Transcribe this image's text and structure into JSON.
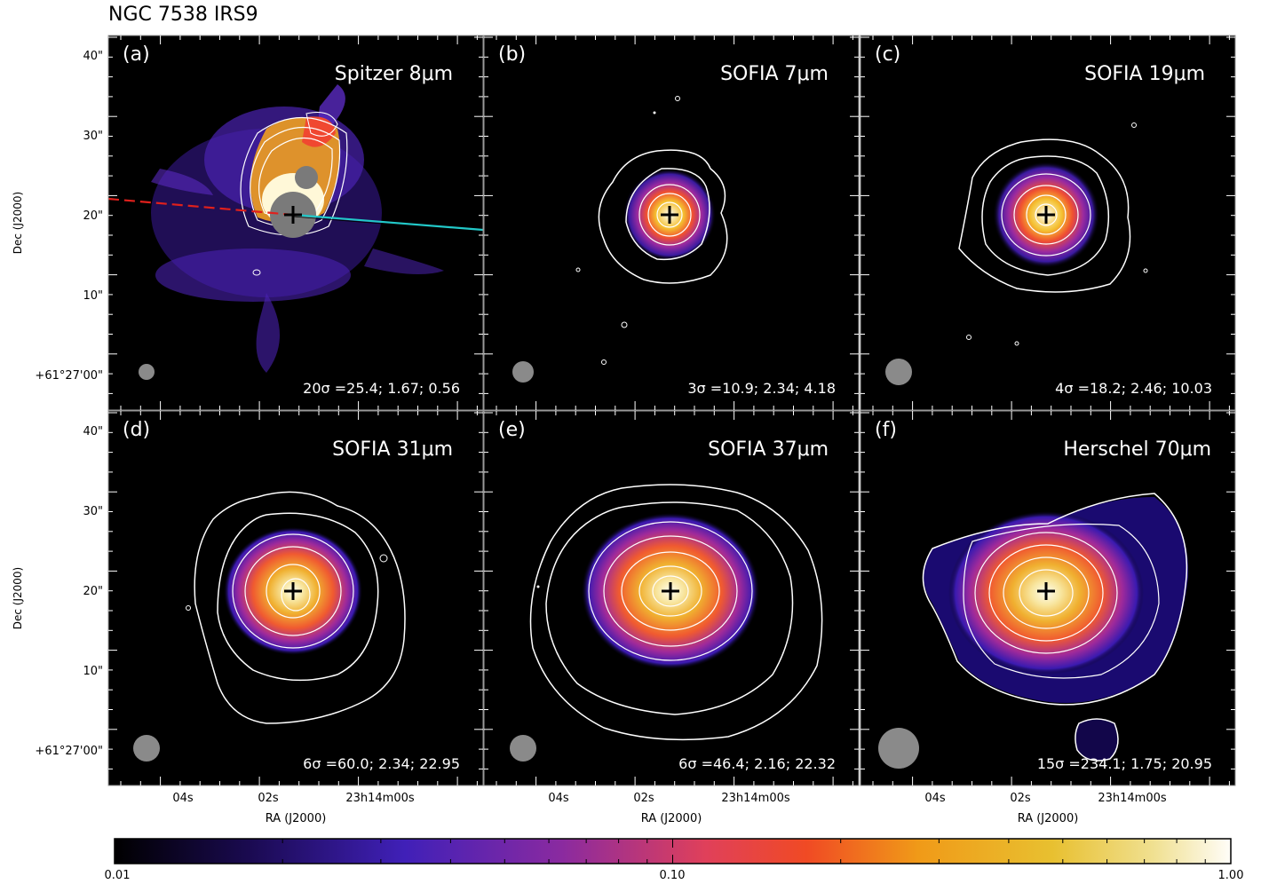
{
  "figure": {
    "title": "NGC 7538 IRS9",
    "colorbar": {
      "min_label": "0.01",
      "mid_label": "0.10",
      "max_label": "1.00",
      "scale": "log"
    }
  },
  "axes": {
    "dec_ticks": [
      "40\"",
      "30\"",
      "20\"",
      "10\"",
      "+61°27'00\""
    ],
    "ra_ticks": [
      "04s",
      "02s",
      "23h14m00s"
    ],
    "ra_label": "RA (J2000)",
    "dec_label": "Dec (J2000)"
  },
  "panels": [
    {
      "letter": "(a)",
      "band": "Spitzer 8μm",
      "contours": "20σ =25.4; 1.67; 0.56",
      "beam": "small"
    },
    {
      "letter": "(b)",
      "band": "SOFIA 7μm",
      "contours": "3σ =10.9; 2.34; 4.18",
      "beam": "medium"
    },
    {
      "letter": "(c)",
      "band": "SOFIA 19μm",
      "contours": "4σ =18.2; 2.46; 10.03",
      "beam": "medium"
    },
    {
      "letter": "(d)",
      "band": "SOFIA 31μm",
      "contours": "6σ =60.0; 2.34; 22.95",
      "beam": "medium"
    },
    {
      "letter": "(e)",
      "band": "SOFIA 37μm",
      "contours": "6σ =46.4; 2.16; 22.32",
      "beam": "medium"
    },
    {
      "letter": "(f)",
      "band": "Herschel 70μm",
      "contours": "15σ =234.1; 1.75; 20.95",
      "beam": "large"
    }
  ],
  "colors": {
    "background": "#000000",
    "contour": "#ffffff",
    "beam": "#8a8a8a",
    "outflow_red": "#e0201c",
    "outflow_blue": "#22c8c8"
  }
}
